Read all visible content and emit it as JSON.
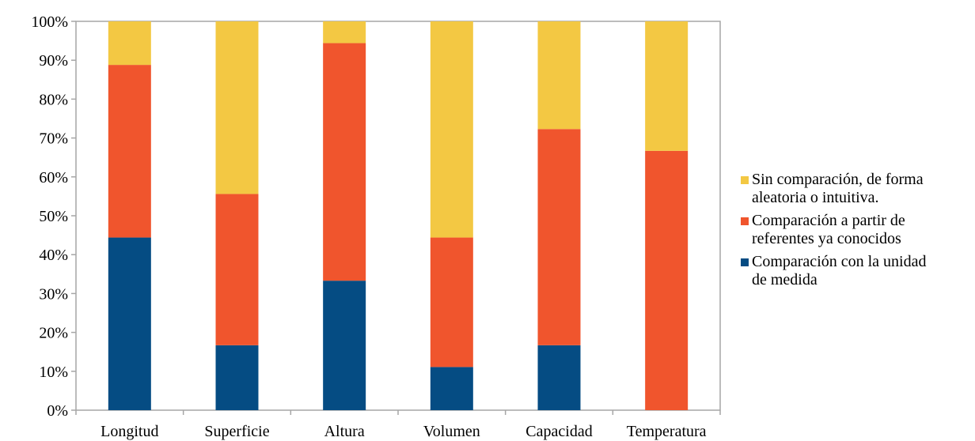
{
  "chart_data": {
    "type": "bar",
    "stacked": true,
    "percent": true,
    "categories": [
      "Longitud",
      "Superficie",
      "Altura",
      "Volumen",
      "Capacidad",
      "Temperatura"
    ],
    "series": [
      {
        "name": "Comparación con la unidad de medida",
        "color": "#054C83",
        "values": [
          44.4,
          16.7,
          33.3,
          11.1,
          16.7,
          0
        ]
      },
      {
        "name": "Comparación a partir de referentes ya conocidos",
        "color": "#F0552D",
        "values": [
          44.4,
          38.9,
          61.1,
          33.3,
          55.6,
          66.7
        ]
      },
      {
        "name": "Sin comparación, de forma aleatoria o intuitiva.",
        "color": "#F3C843",
        "values": [
          11.2,
          44.4,
          5.6,
          55.6,
          27.7,
          33.3
        ]
      }
    ],
    "ylim": [
      0,
      100
    ],
    "yticks": [
      "0%",
      "10%",
      "20%",
      "30%",
      "40%",
      "50%",
      "60%",
      "70%",
      "80%",
      "90%",
      "100%"
    ],
    "legend": {
      "position": "right",
      "entries": [
        {
          "series_index": 2,
          "lines": [
            "Sin comparación, de forma",
            "aleatoria o intuitiva."
          ]
        },
        {
          "series_index": 1,
          "lines": [
            "Comparación a partir de",
            "referentes ya conocidos"
          ]
        },
        {
          "series_index": 0,
          "lines": [
            "Comparación con la unidad",
            "de medida"
          ]
        }
      ]
    },
    "grid": false
  }
}
